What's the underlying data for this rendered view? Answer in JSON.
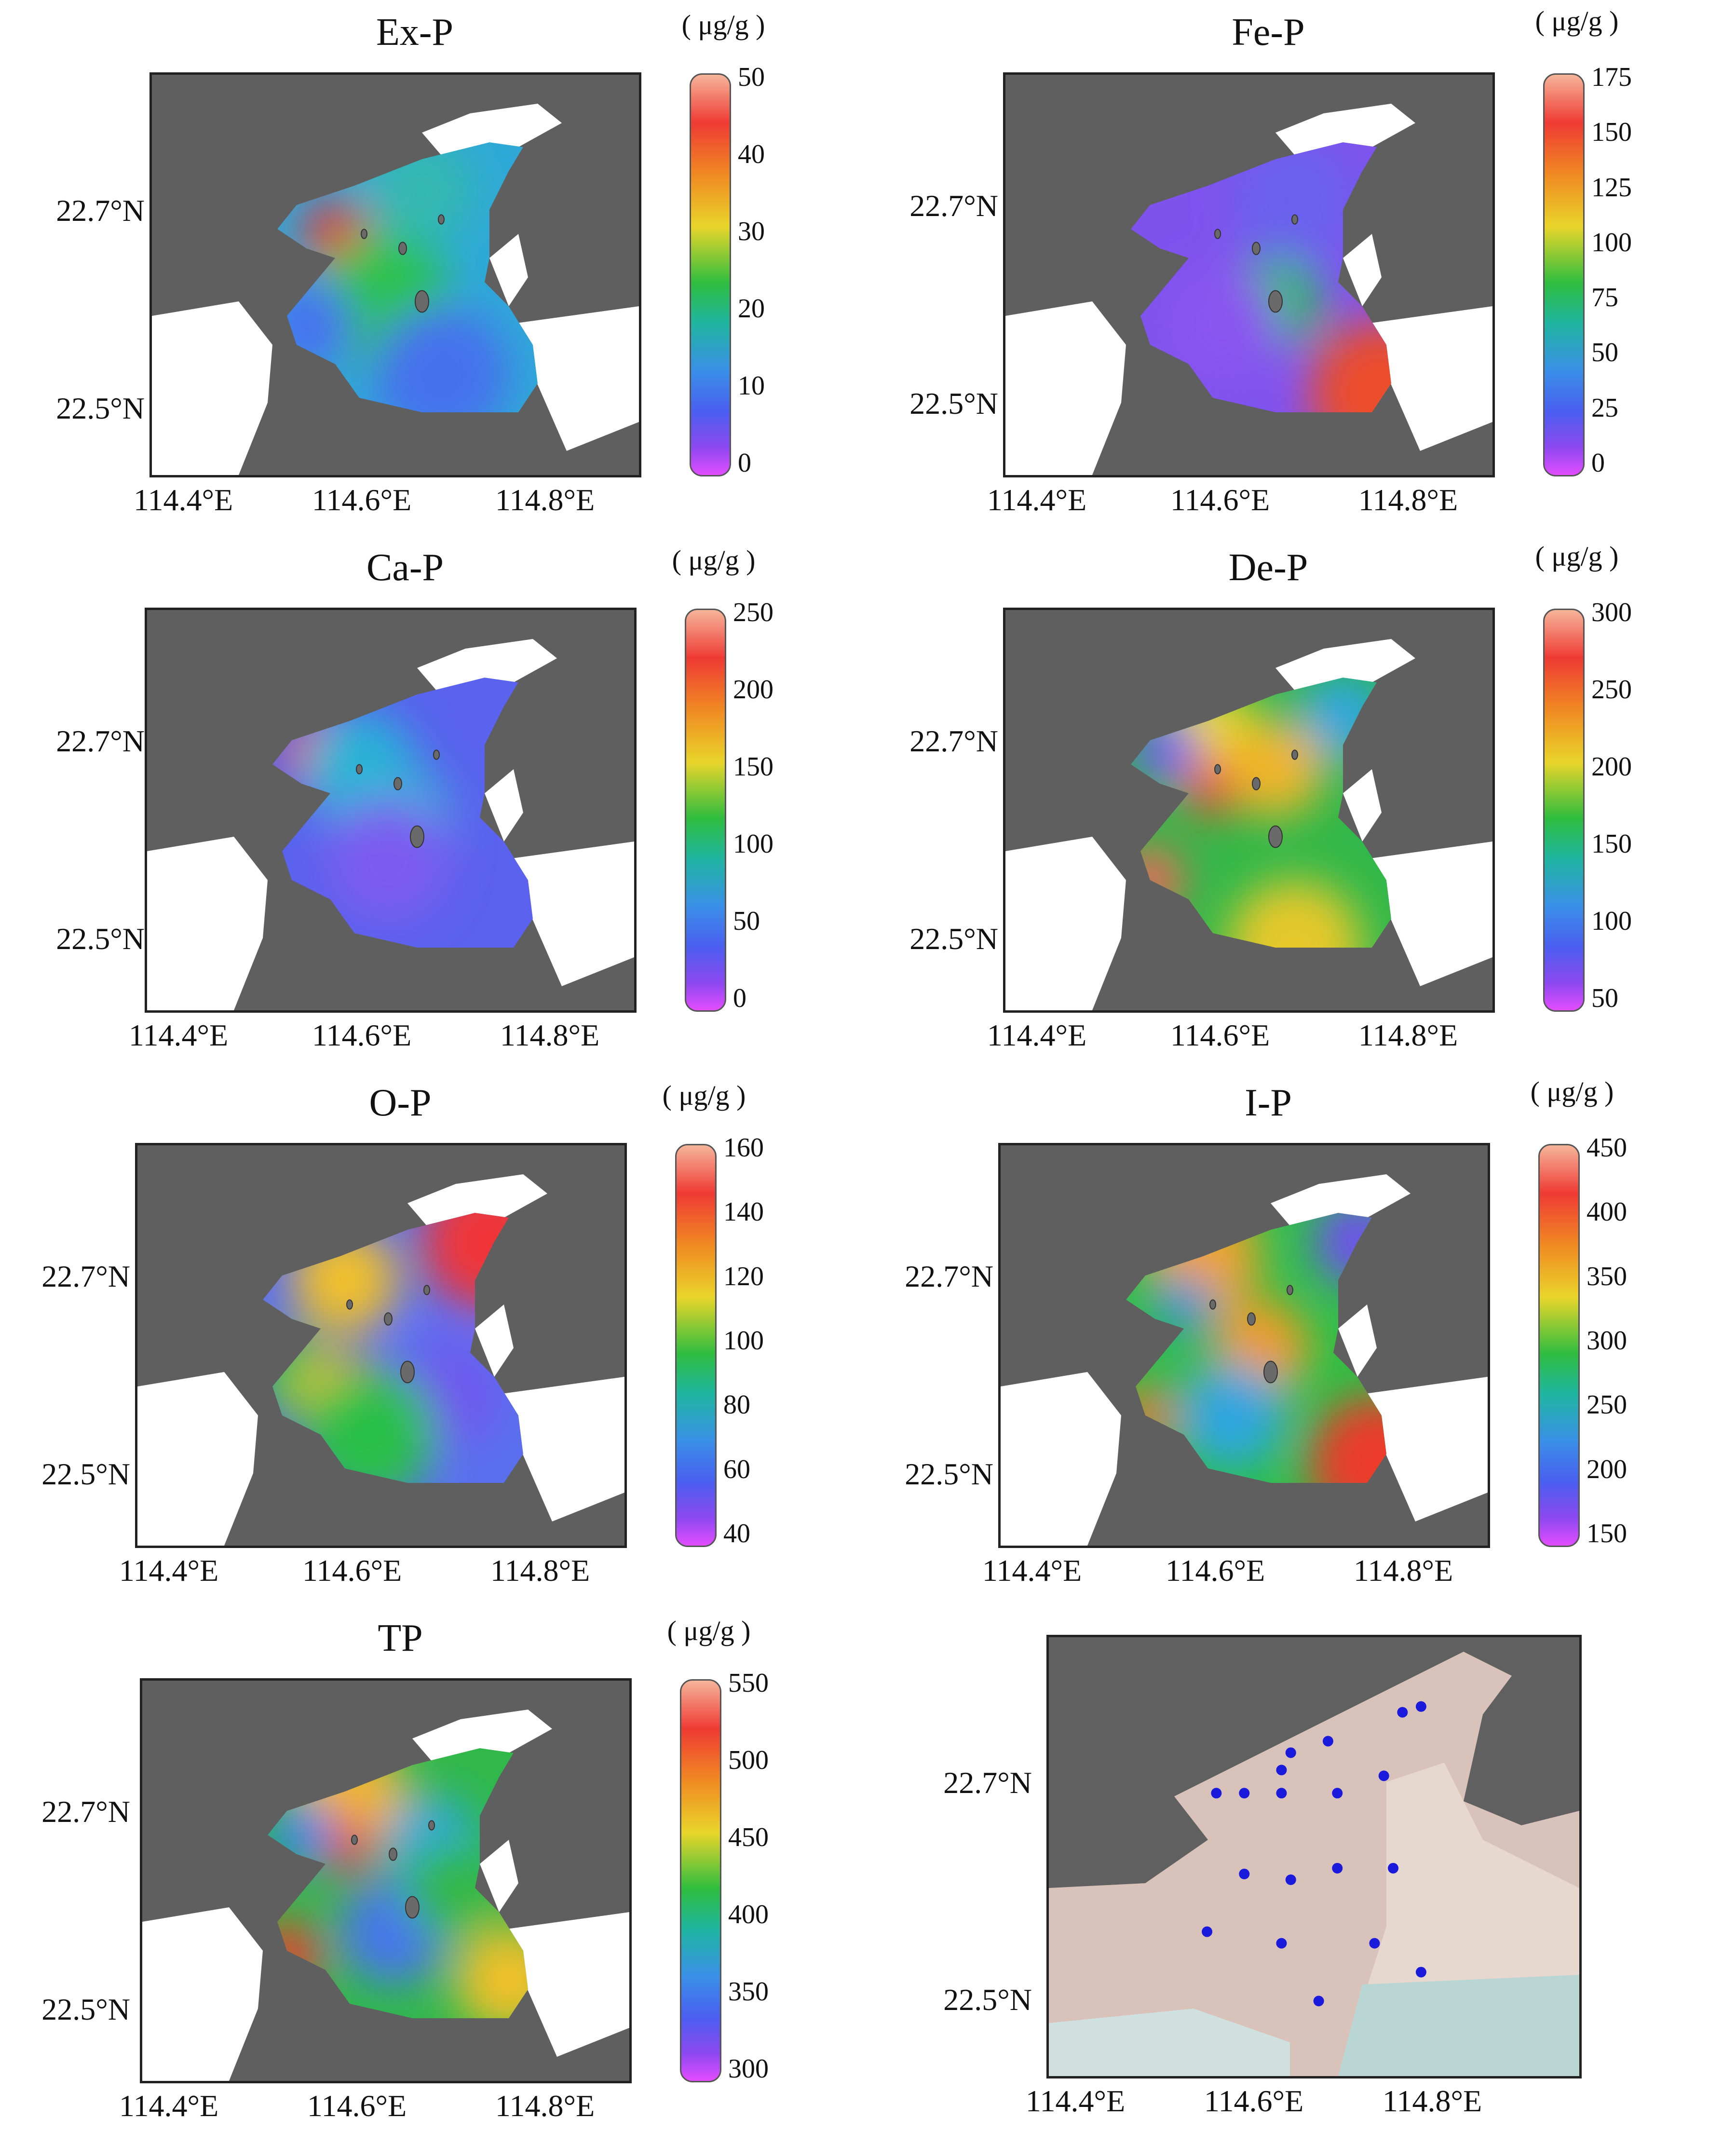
{
  "unit_label": "( μg/g )",
  "lat_labels": [
    "22.7°N",
    "22.5°N"
  ],
  "lon_labels": [
    "114.4°E",
    "114.6°E",
    "114.8°E"
  ],
  "colors": {
    "land": "#5f5f5f",
    "sea_white": "#ffffff",
    "station_dot": "#1a1adc",
    "bathymetry_shallow": "#d9c2b9",
    "bathymetry_deep": "#b9d6d4"
  },
  "panels": [
    {
      "id": "ex-p",
      "title": "Ex-P",
      "ticks": [
        "50",
        "40",
        "30",
        "20",
        "10",
        "0"
      ],
      "hotspots": [
        {
          "color": "#e6303c",
          "note": "west"
        }
      ]
    },
    {
      "id": "fe-p",
      "title": "Fe-P",
      "ticks": [
        "175",
        "150",
        "125",
        "100",
        "75",
        "50",
        "25",
        "0"
      ],
      "hotspots": [
        {
          "color": "#e63c2c",
          "note": "southeast"
        },
        {
          "color": "#2dbb4a",
          "note": "center"
        }
      ]
    },
    {
      "id": "ca-p",
      "title": "Ca-P",
      "ticks": [
        "250",
        "200",
        "150",
        "100",
        "50",
        "0"
      ],
      "hotspots": [
        {
          "color": "#e7412d",
          "note": "northwest"
        }
      ]
    },
    {
      "id": "de-p",
      "title": "De-P",
      "ticks": [
        "300",
        "250",
        "200",
        "150",
        "100",
        "50"
      ],
      "hotspots": [
        {
          "color": "#e7412d",
          "note": "west"
        }
      ]
    },
    {
      "id": "o-p",
      "title": "O-P",
      "ticks": [
        "160",
        "140",
        "120",
        "100",
        "80",
        "60",
        "40"
      ],
      "hotspots": [
        {
          "color": "#ec2f39",
          "note": "northeast"
        }
      ]
    },
    {
      "id": "i-p",
      "title": "I-P",
      "ticks": [
        "450",
        "400",
        "350",
        "300",
        "250",
        "200",
        "150"
      ],
      "hotspots": [
        {
          "color": "#ec2f39",
          "note": "southeast"
        }
      ]
    },
    {
      "id": "tp",
      "title": "TP",
      "ticks": [
        "550",
        "500",
        "450",
        "400",
        "350",
        "300"
      ],
      "hotspots": [
        {
          "color": "#ec2f39",
          "note": "west"
        }
      ]
    }
  ],
  "stations": [
    {
      "lon": 114.75,
      "lat": 22.76
    },
    {
      "lon": 114.73,
      "lat": 22.755
    },
    {
      "lon": 114.61,
      "lat": 22.72
    },
    {
      "lon": 114.65,
      "lat": 22.73
    },
    {
      "lon": 114.6,
      "lat": 22.705
    },
    {
      "lon": 114.71,
      "lat": 22.7
    },
    {
      "lon": 114.53,
      "lat": 22.685
    },
    {
      "lon": 114.56,
      "lat": 22.685
    },
    {
      "lon": 114.6,
      "lat": 22.685
    },
    {
      "lon": 114.66,
      "lat": 22.685
    },
    {
      "lon": 114.56,
      "lat": 22.615
    },
    {
      "lon": 114.61,
      "lat": 22.61
    },
    {
      "lon": 114.66,
      "lat": 22.62
    },
    {
      "lon": 114.72,
      "lat": 22.62
    },
    {
      "lon": 114.52,
      "lat": 22.565
    },
    {
      "lon": 114.6,
      "lat": 22.555
    },
    {
      "lon": 114.7,
      "lat": 22.555
    },
    {
      "lon": 114.75,
      "lat": 22.53
    },
    {
      "lon": 114.64,
      "lat": 22.505
    }
  ]
}
